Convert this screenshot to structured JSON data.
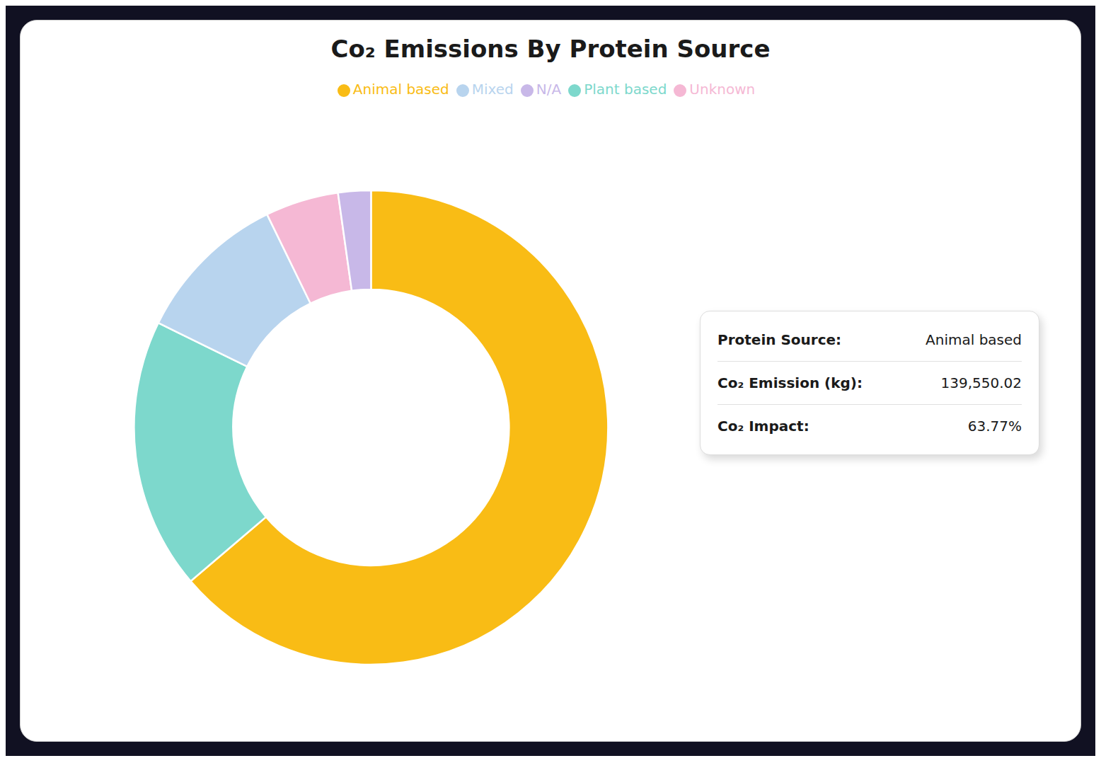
{
  "chart_data": {
    "type": "pie",
    "title": "Co₂ Emissions By Protein Source",
    "categories": [
      "Animal based",
      "Plant based",
      "Mixed",
      "Unknown",
      "N/A"
    ],
    "values": [
      63.77,
      18.5,
      10.5,
      5.0,
      2.23
    ],
    "colors": [
      "#F9BC15",
      "#7DD8CC",
      "#B8D4EE",
      "#F5B8D4",
      "#C8B8E8"
    ],
    "legend": "top",
    "annotations": [
      {
        "label": "Protein Source:",
        "text": "Animal based"
      },
      {
        "label": "Co₂ Emission (kg):",
        "text": "139,550.02"
      },
      {
        "label": "Co₂ Impact:",
        "text": "63.77%"
      }
    ]
  }
}
